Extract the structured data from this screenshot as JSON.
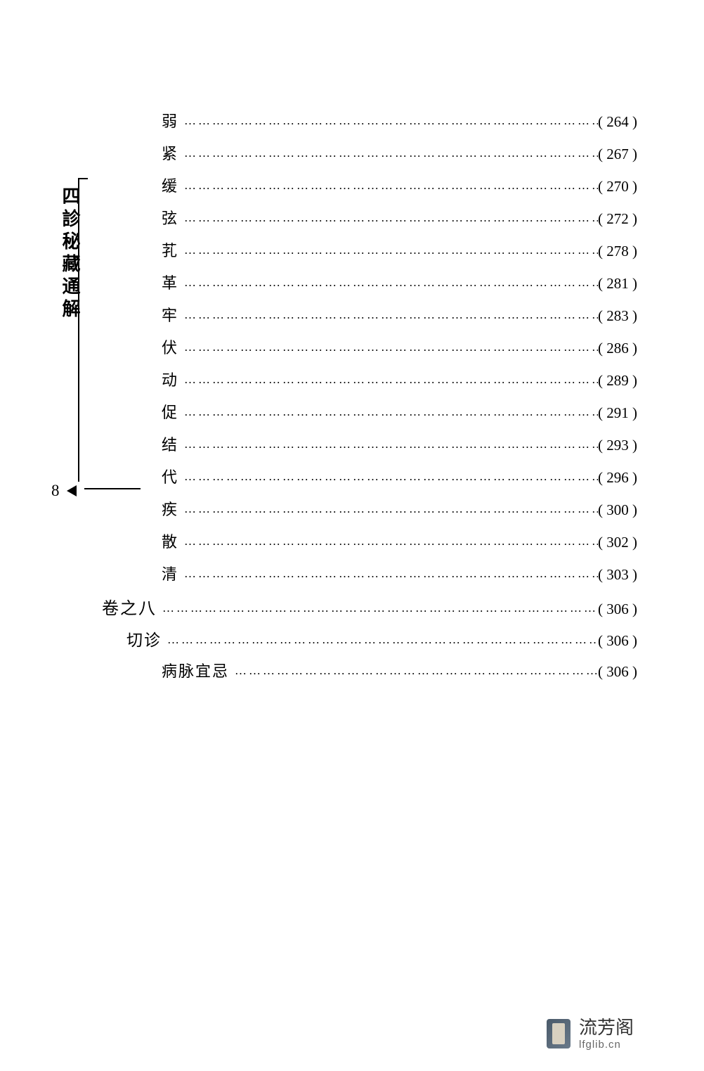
{
  "page_number": "8",
  "sidebar_title": "四診秘藏通解",
  "footer": {
    "brand": "流芳阁",
    "url": "lfglib.cn"
  },
  "toc": {
    "dot_char": "…",
    "entries": [
      {
        "label": "弱",
        "page": "264",
        "level": "3"
      },
      {
        "label": "紧",
        "page": "267",
        "level": "3"
      },
      {
        "label": "缓",
        "page": "270",
        "level": "3"
      },
      {
        "label": "弦",
        "page": "272",
        "level": "3"
      },
      {
        "label": "芤",
        "page": "278",
        "level": "3"
      },
      {
        "label": "革",
        "page": "281",
        "level": "3"
      },
      {
        "label": "牢",
        "page": "283",
        "level": "3"
      },
      {
        "label": "伏",
        "page": "286",
        "level": "3"
      },
      {
        "label": "动",
        "page": "289",
        "level": "3"
      },
      {
        "label": "促",
        "page": "291",
        "level": "3"
      },
      {
        "label": "结",
        "page": "293",
        "level": "3"
      },
      {
        "label": "代",
        "page": "296",
        "level": "3"
      },
      {
        "label": "疾",
        "page": "300",
        "level": "3"
      },
      {
        "label": "散",
        "page": "302",
        "level": "3"
      },
      {
        "label": "清",
        "page": "303",
        "level": "3"
      },
      {
        "label": "卷之八",
        "page": "306",
        "level": "1"
      },
      {
        "label": "切诊",
        "page": "306",
        "level": "2"
      },
      {
        "label": "病脉宜忌",
        "page": "306",
        "level": "3-alt"
      }
    ]
  },
  "styling": {
    "background_color": "#ffffff",
    "text_color": "#000000",
    "entry_fontsize": 22,
    "page_fontsize": 21,
    "sidebar_title_fontsize": 26,
    "line_height": 46,
    "footer_brand_color": "#333333",
    "footer_url_color": "#666666"
  }
}
